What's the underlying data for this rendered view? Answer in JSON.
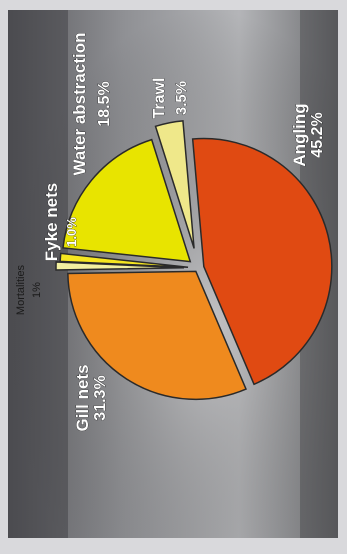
{
  "chart_data": {
    "type": "pie",
    "orientation": "rotated 90 degrees counter-clockwise",
    "slices": [
      {
        "label": "Angling",
        "value_label": "45.2%",
        "value": 45.2,
        "color": "#e04a12"
      },
      {
        "label": "Gill nets",
        "value_label": "31.3%",
        "value": 31.3,
        "color": "#ef8a1e"
      },
      {
        "label": "Mortalities",
        "value_label": "1%",
        "value": 1.0,
        "color": "#f2f0a0"
      },
      {
        "label": "Fyke nets",
        "value_label": "1.0%",
        "value": 1.0,
        "color": "#f5e620"
      },
      {
        "label": "Water abstraction",
        "value_label": "18.5%",
        "value": 18.5,
        "color": "#e8e400"
      },
      {
        "label": "Trawl",
        "value_label": "3.5%",
        "value": 3.5,
        "color": "#efe88a"
      }
    ]
  }
}
